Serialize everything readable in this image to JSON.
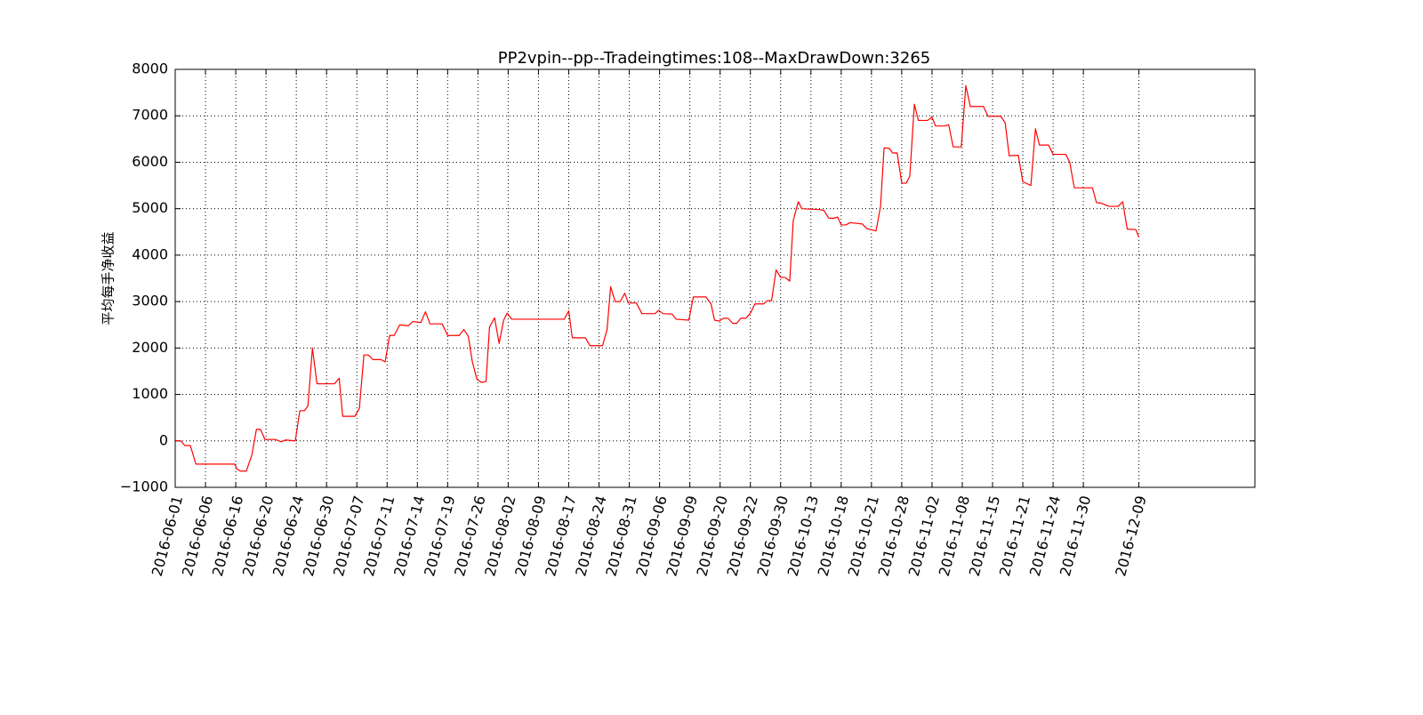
{
  "chart_data": {
    "type": "line",
    "title": "PP2vpin--pp--Tradeingtimes:108--MaxDrawDown:3265",
    "y_label": "平均每手净收益",
    "color": "#ff0000",
    "grid": true,
    "xlim": [
      0,
      214
    ],
    "ylim": [
      -1000,
      8000
    ],
    "yticks": [
      {
        "value": -1000,
        "label": "−1000"
      },
      0,
      1000,
      2000,
      3000,
      4000,
      5000,
      6000,
      7000,
      8000
    ],
    "xticks": [
      {
        "value": 0,
        "label": "2016-06-01"
      },
      {
        "value": 6,
        "label": "2016-06-06"
      },
      {
        "value": 12,
        "label": "2016-06-16"
      },
      {
        "value": 18,
        "label": "2016-06-20"
      },
      {
        "value": 24,
        "label": "2016-06-24"
      },
      {
        "value": 30,
        "label": "2016-06-30"
      },
      {
        "value": 36,
        "label": "2016-07-07"
      },
      {
        "value": 42,
        "label": "2016-07-11"
      },
      {
        "value": 48,
        "label": "2016-07-14"
      },
      {
        "value": 54,
        "label": "2016-07-19"
      },
      {
        "value": 60,
        "label": "2016-07-26"
      },
      {
        "value": 66,
        "label": "2016-08-02"
      },
      {
        "value": 72,
        "label": "2016-08-09"
      },
      {
        "value": 78,
        "label": "2016-08-17"
      },
      {
        "value": 84,
        "label": "2016-08-24"
      },
      {
        "value": 90,
        "label": "2016-08-31"
      },
      {
        "value": 96,
        "label": "2016-09-06"
      },
      {
        "value": 102,
        "label": "2016-09-09"
      },
      {
        "value": 108,
        "label": "2016-09-20"
      },
      {
        "value": 114,
        "label": "2016-09-22"
      },
      {
        "value": 120,
        "label": "2016-09-30"
      },
      {
        "value": 126,
        "label": "2016-10-13"
      },
      {
        "value": 132,
        "label": "2016-10-18"
      },
      {
        "value": 138,
        "label": "2016-10-21"
      },
      {
        "value": 144,
        "label": "2016-10-28"
      },
      {
        "value": 150,
        "label": "2016-11-02"
      },
      {
        "value": 156,
        "label": "2016-11-08"
      },
      {
        "value": 162,
        "label": "2016-11-15"
      },
      {
        "value": 168,
        "label": "2016-11-21"
      },
      {
        "value": 174,
        "label": "2016-11-24"
      },
      {
        "value": 180,
        "label": "2016-11-30"
      },
      {
        "value": 191,
        "label": "2016-12-09"
      }
    ],
    "x": [
      0,
      1.1,
      1.9,
      3.0,
      4.1,
      11.8,
      12.2,
      12.9,
      14.1,
      15.2,
      16.1,
      16.9,
      17.8,
      19.9,
      21.0,
      21.9,
      23.8,
      24.7,
      25.6,
      26.3,
      27.2,
      28.1,
      31.6,
      32.5,
      33.2,
      35.6,
      36.5,
      37.4,
      38.3,
      39.2,
      40.8,
      41.6,
      42.5,
      43.4,
      44.5,
      46.2,
      47.1,
      48.7,
      49.6,
      50.5,
      52.9,
      54.0,
      56.3,
      57.2,
      58.1,
      58.9,
      59.8,
      60.7,
      61.6,
      62.3,
      63.3,
      64.2,
      65.1,
      65.8,
      66.7,
      77.1,
      78.0,
      78.7,
      81.3,
      82.2,
      84.7,
      85.6,
      86.3,
      87.2,
      88.2,
      89.1,
      89.8,
      91.4,
      92.5,
      95.1,
      95.8,
      96.7,
      98.5,
      99.3,
      101.8,
      102.7,
      105.2,
      106.2,
      106.9,
      107.8,
      108.7,
      109.6,
      110.5,
      111.3,
      112.1,
      113.1,
      114.0,
      114.9,
      116.6,
      117.4,
      118.2,
      119.1,
      120.0,
      120.9,
      121.8,
      122.5,
      123.5,
      124.2,
      127.8,
      128.6,
      129.5,
      130.4,
      131.3,
      132.0,
      132.9,
      133.8,
      136.2,
      137.1,
      138.9,
      139.8,
      140.5,
      141.5,
      142.2,
      143.1,
      144.0,
      144.9,
      145.6,
      146.5,
      147.3,
      149.1,
      150.0,
      150.7,
      152.5,
      153.3,
      154.2,
      155.8,
      156.7,
      157.6,
      160.2,
      161.1,
      163.6,
      164.5,
      165.3,
      167.1,
      168.0,
      169.6,
      170.5,
      171.3,
      173.1,
      174.0,
      176.5,
      177.3,
      178.2,
      181.8,
      182.6,
      183.5,
      185.1,
      186.9,
      187.8,
      188.7,
      190.4,
      191
    ],
    "values": [
      0,
      0,
      -100,
      -100,
      -500,
      -500,
      -600,
      -650,
      -650,
      -300,
      250,
      250,
      30,
      30,
      -20,
      20,
      0,
      650,
      650,
      750,
      2000,
      1230,
      1230,
      1350,
      530,
      530,
      700,
      1850,
      1850,
      1750,
      1750,
      1700,
      2270,
      2270,
      2500,
      2480,
      2570,
      2550,
      2780,
      2520,
      2520,
      2270,
      2270,
      2400,
      2250,
      1700,
      1330,
      1260,
      1280,
      2450,
      2650,
      2100,
      2600,
      2750,
      2620,
      2620,
      2800,
      2220,
      2220,
      2050,
      2050,
      2400,
      3320,
      3000,
      3000,
      3180,
      2970,
      2970,
      2740,
      2740,
      2810,
      2740,
      2730,
      2620,
      2600,
      3100,
      3100,
      2950,
      2600,
      2580,
      2640,
      2640,
      2530,
      2530,
      2640,
      2640,
      2750,
      2950,
      2950,
      3020,
      3020,
      3680,
      3520,
      3520,
      3440,
      4750,
      5150,
      5000,
      4980,
      4960,
      4800,
      4790,
      4820,
      4650,
      4650,
      4700,
      4670,
      4570,
      4520,
      5050,
      6310,
      6300,
      6200,
      6200,
      5550,
      5550,
      5700,
      7250,
      6900,
      6900,
      6970,
      6780,
      6780,
      6810,
      6330,
      6330,
      7650,
      7200,
      7200,
      6990,
      6990,
      6850,
      6140,
      6150,
      5580,
      5500,
      6720,
      6370,
      6370,
      6170,
      6170,
      6000,
      5450,
      5450,
      5130,
      5120,
      5050,
      5050,
      5150,
      4560,
      4550,
      4380
    ]
  }
}
